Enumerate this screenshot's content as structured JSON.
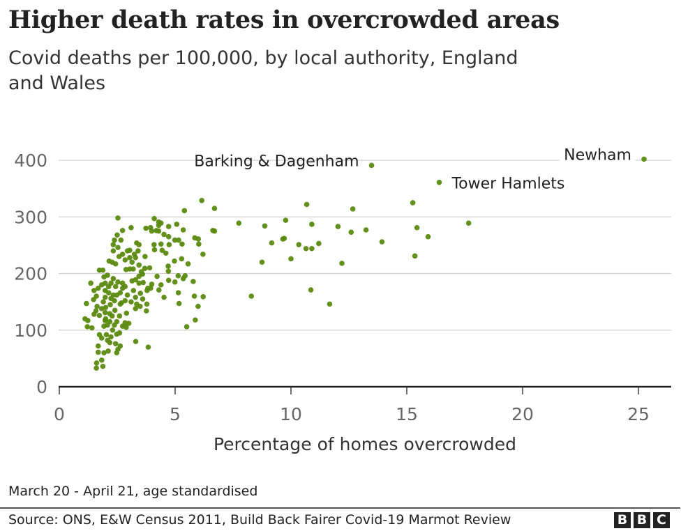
{
  "header": {
    "title": "Higher death rates in overcrowded areas",
    "subtitle": "Covid deaths per 100,000, by local authority, England and Wales"
  },
  "footer": {
    "note": "March 20 - April 21, age standardised",
    "source": "Source: ONS, E&W Census 2011, Build Back Fairer Covid-19 Marmot Review",
    "logo": [
      "B",
      "B",
      "C"
    ]
  },
  "colors": {
    "points": "#5a8a0f",
    "grid": "#d0d0d0",
    "axis": "#222222",
    "tick_text": "#666666"
  },
  "chart_data": {
    "type": "scatter",
    "xlabel": "Percentage of homes overcrowded",
    "ylabel": "",
    "xlim": [
      0,
      26.4
    ],
    "ylim": [
      0,
      400
    ],
    "xticks": [
      0,
      5,
      10,
      15,
      20,
      25
    ],
    "yticks": [
      0,
      100,
      200,
      300,
      400
    ],
    "grid": "horizontal",
    "annotations": [
      {
        "label": "Barking & Dagenham",
        "x": 13.48,
        "y": 391,
        "side": "left"
      },
      {
        "label": "Tower Hamlets",
        "x": 16.4,
        "y": 361,
        "side": "right"
      },
      {
        "label": "Newham",
        "x": 25.24,
        "y": 402,
        "side": "left"
      }
    ],
    "points": [
      [
        13.48,
        391
      ],
      [
        16.4,
        361
      ],
      [
        25.24,
        402
      ],
      [
        6.15,
        329
      ],
      [
        6.7,
        315
      ],
      [
        7.75,
        289
      ],
      [
        8.87,
        284
      ],
      [
        9.77,
        294
      ],
      [
        10.68,
        322
      ],
      [
        10.9,
        287
      ],
      [
        12.67,
        314
      ],
      [
        15.26,
        325
      ],
      [
        17.67,
        289
      ],
      [
        15.44,
        281
      ],
      [
        12.03,
        283
      ],
      [
        12.6,
        273
      ],
      [
        13.24,
        277
      ],
      [
        9.17,
        254
      ],
      [
        9.65,
        261
      ],
      [
        9.71,
        262
      ],
      [
        10.34,
        251
      ],
      [
        10.65,
        244
      ],
      [
        10.9,
        244
      ],
      [
        11.2,
        253
      ],
      [
        13.93,
        256
      ],
      [
        15.92,
        265
      ],
      [
        8.75,
        220
      ],
      [
        10.0,
        226
      ],
      [
        12.2,
        218
      ],
      [
        15.35,
        231
      ],
      [
        8.29,
        160
      ],
      [
        10.86,
        171
      ],
      [
        11.67,
        146
      ],
      [
        5.4,
        311
      ],
      [
        2.53,
        298
      ],
      [
        6.63,
        276
      ],
      [
        6.7,
        275
      ],
      [
        2.73,
        276
      ],
      [
        3.1,
        281
      ],
      [
        2.5,
        268
      ],
      [
        2.38,
        259
      ],
      [
        2.66,
        259
      ],
      [
        2.33,
        251
      ],
      [
        2.53,
        246
      ],
      [
        2.33,
        240
      ],
      [
        3.34,
        254
      ],
      [
        3.44,
        251
      ],
      [
        4.1,
        297
      ],
      [
        4.29,
        291
      ],
      [
        4.39,
        289
      ],
      [
        4.29,
        285
      ],
      [
        3.74,
        280
      ],
      [
        3.94,
        281
      ],
      [
        3.99,
        275
      ],
      [
        4.19,
        276
      ],
      [
        4.29,
        275
      ],
      [
        4.72,
        283
      ],
      [
        5.07,
        287
      ],
      [
        5.35,
        277
      ],
      [
        4.52,
        269
      ],
      [
        4.72,
        265
      ],
      [
        4.09,
        251
      ],
      [
        4.39,
        252
      ],
      [
        4.74,
        251
      ],
      [
        4.11,
        242
      ],
      [
        4.44,
        241
      ],
      [
        4.6,
        236
      ],
      [
        4.99,
        259
      ],
      [
        5.15,
        259
      ],
      [
        5.3,
        252
      ],
      [
        5.85,
        263
      ],
      [
        6.0,
        261
      ],
      [
        6.02,
        252
      ],
      [
        6.2,
        234
      ],
      [
        4.97,
        222
      ],
      [
        5.28,
        226
      ],
      [
        5.56,
        217
      ],
      [
        4.7,
        213
      ],
      [
        4.71,
        204
      ],
      [
        4.72,
        188
      ],
      [
        4.99,
        185
      ],
      [
        4.22,
        195
      ],
      [
        5.13,
        196
      ],
      [
        5.43,
        196
      ],
      [
        5.35,
        191
      ],
      [
        5.78,
        186
      ],
      [
        4.39,
        180
      ],
      [
        4.3,
        171
      ],
      [
        4.52,
        158
      ],
      [
        5.14,
        166
      ],
      [
        5.17,
        147
      ],
      [
        5.83,
        160
      ],
      [
        6.21,
        159
      ],
      [
        5.99,
        142
      ],
      [
        5.87,
        118
      ],
      [
        5.5,
        106
      ],
      [
        3.99,
        181
      ],
      [
        3.82,
        174
      ],
      [
        3.78,
        146
      ],
      [
        3.76,
        134
      ],
      [
        3.3,
        80
      ],
      [
        3.84,
        70
      ],
      [
        1.36,
        183
      ],
      [
        1.17,
        147
      ],
      [
        1.11,
        120
      ],
      [
        1.23,
        117
      ],
      [
        1.21,
        106
      ],
      [
        1.41,
        104
      ],
      [
        1.48,
        154
      ],
      [
        1.63,
        142
      ],
      [
        1.58,
        134
      ],
      [
        1.73,
        126
      ],
      [
        1.68,
        174
      ],
      [
        1.83,
        180
      ],
      [
        1.98,
        170
      ],
      [
        2.13,
        166
      ],
      [
        1.73,
        206
      ],
      [
        1.88,
        206
      ],
      [
        2.08,
        197
      ],
      [
        1.93,
        194
      ],
      [
        2.15,
        222
      ],
      [
        2.28,
        220
      ],
      [
        2.43,
        217
      ],
      [
        2.58,
        230
      ],
      [
        2.73,
        234
      ],
      [
        2.94,
        240
      ],
      [
        3.04,
        241
      ],
      [
        2.88,
        207
      ],
      [
        3.04,
        208
      ],
      [
        3.19,
        208
      ],
      [
        3.29,
        228
      ],
      [
        3.44,
        215
      ],
      [
        3.54,
        203
      ],
      [
        3.69,
        209
      ],
      [
        3.14,
        187
      ],
      [
        3.29,
        189
      ],
      [
        3.44,
        183
      ],
      [
        3.62,
        184
      ],
      [
        2.33,
        191
      ],
      [
        2.53,
        185
      ],
      [
        2.73,
        183
      ],
      [
        2.84,
        177
      ],
      [
        1.98,
        158
      ],
      [
        2.23,
        156
      ],
      [
        2.38,
        152
      ],
      [
        2.63,
        146
      ],
      [
        2.73,
        174
      ],
      [
        2.94,
        162
      ],
      [
        2.84,
        152
      ],
      [
        2.68,
        148
      ],
      [
        3.29,
        158
      ],
      [
        3.34,
        146
      ],
      [
        3.49,
        142
      ],
      [
        3.29,
        138
      ],
      [
        1.83,
        138
      ],
      [
        1.98,
        131
      ],
      [
        2.18,
        129
      ],
      [
        2.28,
        125
      ],
      [
        1.98,
        117
      ],
      [
        2.18,
        115
      ],
      [
        2.38,
        109
      ],
      [
        2.08,
        109
      ],
      [
        1.93,
        107
      ],
      [
        2.48,
        115
      ],
      [
        2.84,
        113
      ],
      [
        2.89,
        105
      ],
      [
        2.73,
        107
      ],
      [
        1.73,
        92
      ],
      [
        1.83,
        86
      ],
      [
        2.03,
        92
      ],
      [
        2.08,
        82
      ],
      [
        2.23,
        88
      ],
      [
        2.18,
        78
      ],
      [
        2.48,
        93
      ],
      [
        2.43,
        76
      ],
      [
        2.63,
        72
      ],
      [
        2.53,
        66
      ],
      [
        2.48,
        60
      ],
      [
        1.68,
        72
      ],
      [
        1.68,
        61
      ],
      [
        1.93,
        60
      ],
      [
        2.11,
        63
      ],
      [
        1.83,
        47
      ],
      [
        1.88,
        36
      ],
      [
        1.61,
        42
      ],
      [
        1.6,
        33
      ],
      [
        2.23,
        183
      ],
      [
        2.43,
        177
      ],
      [
        1.98,
        183
      ],
      [
        2.13,
        177
      ],
      [
        2.63,
        166
      ],
      [
        2.48,
        162
      ],
      [
        2.33,
        162
      ],
      [
        3.04,
        228
      ],
      [
        3.14,
        220
      ],
      [
        3.24,
        234
      ],
      [
        2.84,
        224
      ],
      [
        3.44,
        195
      ],
      [
        3.59,
        199
      ],
      [
        3.79,
        170
      ],
      [
        3.94,
        174
      ],
      [
        1.5,
        170
      ],
      [
        1.6,
        160
      ],
      [
        1.9,
        150
      ],
      [
        2.0,
        140
      ],
      [
        2.2,
        145
      ],
      [
        2.4,
        135
      ],
      [
        2.6,
        125
      ],
      [
        2.9,
        130
      ],
      [
        3.1,
        150
      ],
      [
        3.2,
        170
      ],
      [
        3.5,
        165
      ],
      [
        3.6,
        155
      ],
      [
        3.9,
        210
      ],
      [
        3.7,
        230
      ],
      [
        3.4,
        240
      ],
      [
        2.0,
        120
      ],
      [
        1.5,
        128
      ],
      [
        2.3,
        100
      ],
      [
        2.6,
        95
      ],
      [
        3.0,
        112
      ]
    ]
  }
}
